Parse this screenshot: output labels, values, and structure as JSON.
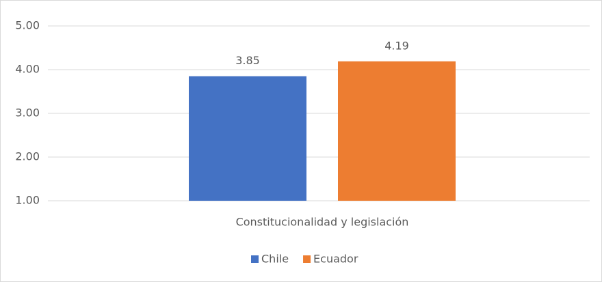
{
  "chart_data": {
    "type": "bar",
    "categories": [
      "Constitucionalidad y legislación"
    ],
    "series": [
      {
        "name": "Chile",
        "color": "#4472c4",
        "values": [
          3.85
        ]
      },
      {
        "name": "Ecuador",
        "color": "#ed7d31",
        "values": [
          4.19
        ]
      }
    ],
    "ylim": [
      1,
      5
    ],
    "yticks": [
      {
        "value": 1,
        "label": "1.00"
      },
      {
        "value": 2,
        "label": "2.00"
      },
      {
        "value": 3,
        "label": "3.00"
      },
      {
        "value": 4,
        "label": "4.00"
      },
      {
        "value": 5,
        "label": "5.00"
      }
    ],
    "grid": true,
    "legend": "bottom"
  }
}
